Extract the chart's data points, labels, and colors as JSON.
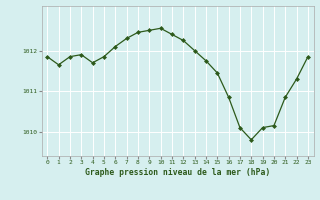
{
  "x": [
    0,
    1,
    2,
    3,
    4,
    5,
    6,
    7,
    8,
    9,
    10,
    11,
    12,
    13,
    14,
    15,
    16,
    17,
    18,
    19,
    20,
    21,
    22,
    23
  ],
  "y": [
    1011.85,
    1011.65,
    1011.85,
    1011.9,
    1011.7,
    1011.85,
    1012.1,
    1012.3,
    1012.45,
    1012.5,
    1012.55,
    1012.4,
    1012.25,
    1012.0,
    1011.75,
    1011.45,
    1010.85,
    1010.1,
    1009.8,
    1010.1,
    1010.15,
    1010.85,
    1011.3,
    1011.85
  ],
  "line_color": "#2d5a1b",
  "marker": "D",
  "marker_size": 2.0,
  "bg_color": "#d6efef",
  "grid_color": "#ffffff",
  "axis_label_color": "#2d5a1b",
  "tick_color": "#2d5a1b",
  "xlabel": "Graphe pression niveau de la mer (hPa)",
  "yticks": [
    1010,
    1011,
    1012
  ],
  "ylim": [
    1009.4,
    1013.1
  ],
  "xlim": [
    -0.5,
    23.5
  ],
  "xticks": [
    0,
    1,
    2,
    3,
    4,
    5,
    6,
    7,
    8,
    9,
    10,
    11,
    12,
    13,
    14,
    15,
    16,
    17,
    18,
    19,
    20,
    21,
    22,
    23
  ]
}
